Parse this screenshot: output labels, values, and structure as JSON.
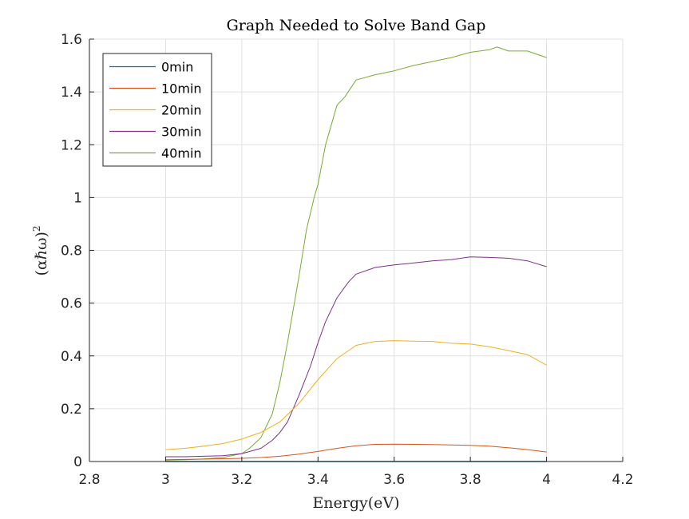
{
  "chart_data": {
    "type": "line",
    "title": "Graph Needed to Solve Band Gap",
    "xlabel": "Energy(eV)",
    "ylabel": "(αℏω)",
    "ylabel_superscript": "2",
    "xlim": [
      2.8,
      4.2
    ],
    "ylim": [
      0,
      1.6
    ],
    "xticks": [
      2.8,
      3.0,
      3.2,
      3.4,
      3.6,
      3.8,
      4.0,
      4.2
    ],
    "xtick_labels": [
      "2.8",
      "3",
      "3.2",
      "3.4",
      "3.6",
      "3.8",
      "4",
      "4.2"
    ],
    "yticks": [
      0,
      0.2,
      0.4,
      0.6,
      0.8,
      1.0,
      1.2,
      1.4,
      1.6
    ],
    "ytick_labels": [
      "0",
      "0.2",
      "0.4",
      "0.6",
      "0.8",
      "1",
      "1.2",
      "1.4",
      "1.6"
    ],
    "grid": true,
    "legend_position": "top-left",
    "series": [
      {
        "name": "0min",
        "color": "#0072BD",
        "x": [
          3.0,
          3.1,
          3.2,
          3.3,
          3.4,
          3.5,
          3.6,
          3.7,
          3.8,
          3.9,
          4.0
        ],
        "y": [
          0.0,
          0.0,
          0.0,
          0.0,
          0.0,
          0.0,
          0.0,
          0.0,
          0.0,
          0.0,
          0.0
        ]
      },
      {
        "name": "10min",
        "color": "#D95319",
        "x": [
          3.0,
          3.1,
          3.2,
          3.25,
          3.3,
          3.35,
          3.4,
          3.45,
          3.5,
          3.55,
          3.6,
          3.65,
          3.7,
          3.75,
          3.8,
          3.85,
          3.9,
          3.95,
          4.0
        ],
        "y": [
          0.007,
          0.009,
          0.012,
          0.015,
          0.02,
          0.028,
          0.038,
          0.05,
          0.06,
          0.065,
          0.066,
          0.065,
          0.064,
          0.063,
          0.061,
          0.058,
          0.052,
          0.045,
          0.036
        ]
      },
      {
        "name": "20min",
        "color": "#EDB120",
        "x": [
          3.0,
          3.05,
          3.1,
          3.15,
          3.2,
          3.25,
          3.3,
          3.35,
          3.4,
          3.45,
          3.5,
          3.55,
          3.6,
          3.65,
          3.7,
          3.75,
          3.8,
          3.85,
          3.9,
          3.95,
          4.0
        ],
        "y": [
          0.045,
          0.05,
          0.058,
          0.068,
          0.085,
          0.11,
          0.15,
          0.22,
          0.31,
          0.39,
          0.44,
          0.455,
          0.458,
          0.456,
          0.455,
          0.448,
          0.445,
          0.435,
          0.42,
          0.405,
          0.365
        ]
      },
      {
        "name": "30min",
        "color": "#7E2F8E",
        "x": [
          3.0,
          3.05,
          3.1,
          3.15,
          3.2,
          3.25,
          3.28,
          3.3,
          3.32,
          3.35,
          3.38,
          3.4,
          3.42,
          3.45,
          3.48,
          3.5,
          3.55,
          3.6,
          3.65,
          3.7,
          3.75,
          3.8,
          3.85,
          3.9,
          3.95,
          4.0
        ],
        "y": [
          0.018,
          0.018,
          0.02,
          0.022,
          0.03,
          0.05,
          0.08,
          0.11,
          0.15,
          0.25,
          0.36,
          0.45,
          0.53,
          0.62,
          0.68,
          0.71,
          0.735,
          0.745,
          0.752,
          0.76,
          0.765,
          0.775,
          0.773,
          0.77,
          0.76,
          0.738
        ]
      },
      {
        "name": "40min",
        "color": "#77AC30",
        "x": [
          3.0,
          3.05,
          3.1,
          3.15,
          3.2,
          3.22,
          3.25,
          3.28,
          3.3,
          3.32,
          3.35,
          3.37,
          3.39,
          3.4,
          3.42,
          3.45,
          3.47,
          3.5,
          3.55,
          3.6,
          3.65,
          3.7,
          3.75,
          3.8,
          3.85,
          3.87,
          3.9,
          3.95,
          4.0
        ],
        "y": [
          0.005,
          0.007,
          0.01,
          0.015,
          0.03,
          0.05,
          0.09,
          0.18,
          0.3,
          0.45,
          0.7,
          0.88,
          1.0,
          1.05,
          1.2,
          1.35,
          1.38,
          1.445,
          1.465,
          1.48,
          1.5,
          1.515,
          1.53,
          1.55,
          1.56,
          1.57,
          1.555,
          1.555,
          1.53
        ]
      }
    ]
  }
}
